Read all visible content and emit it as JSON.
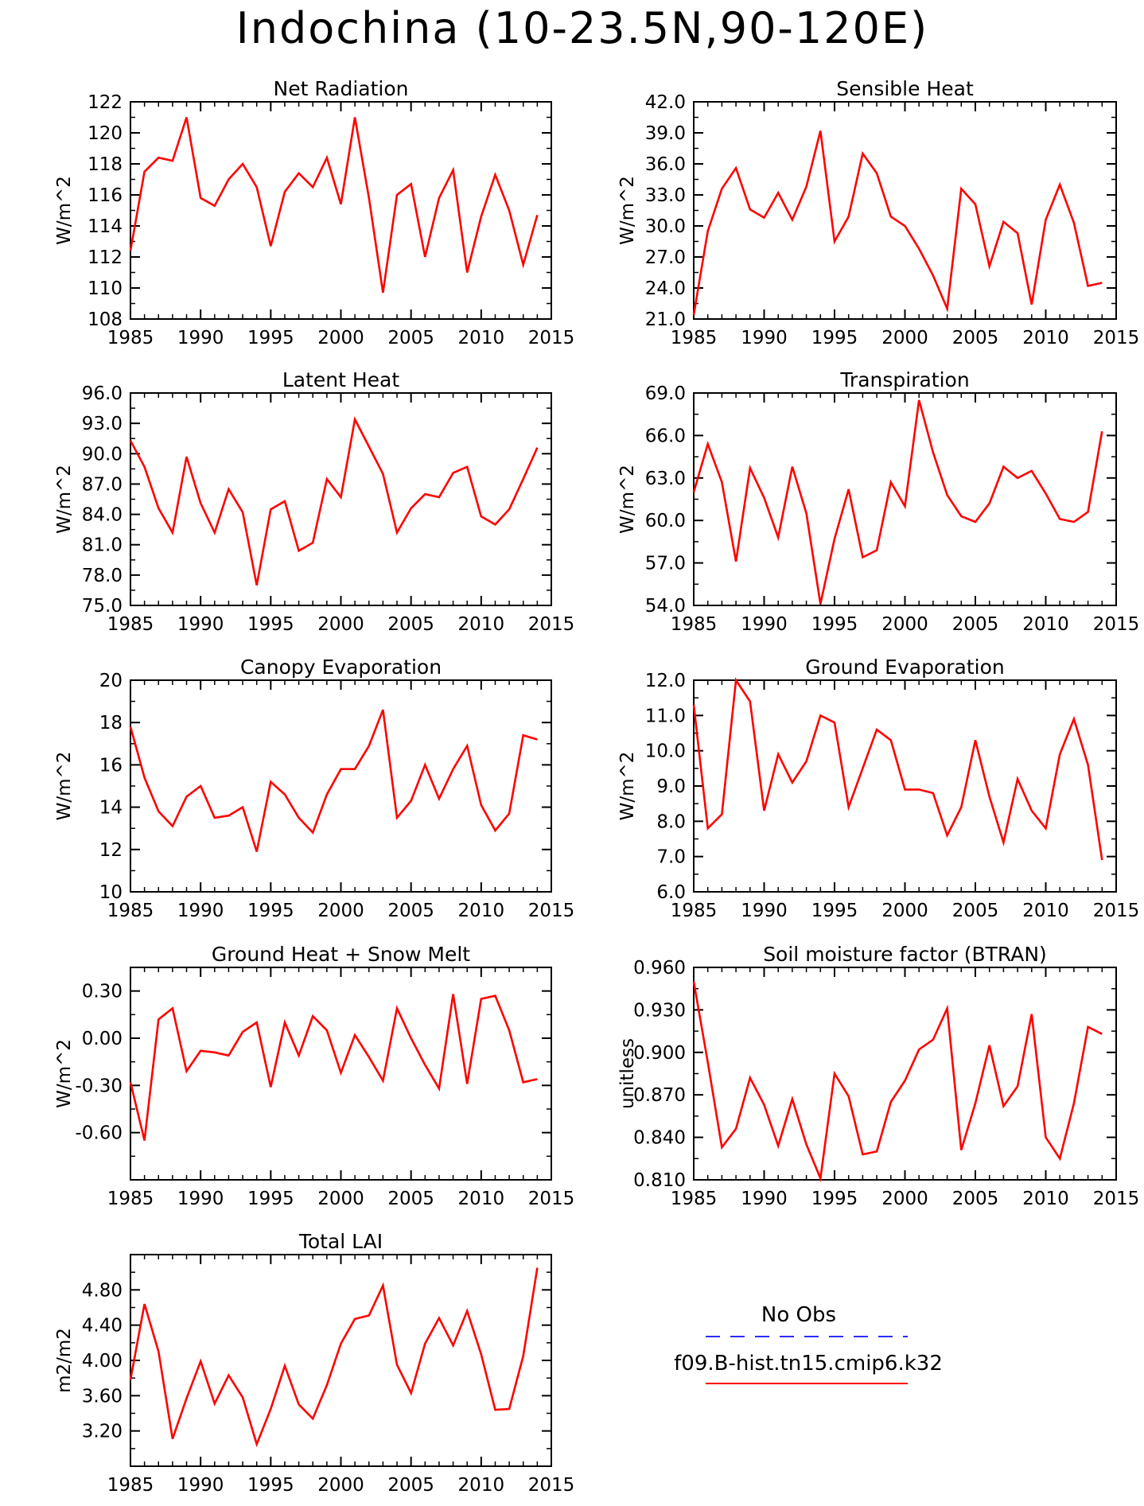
{
  "title": "Indochina (10-23.5N,90-120E)",
  "chart_data": [
    {
      "type": "line",
      "title": "Net Radiation",
      "ylabel": "W/m^2",
      "xlim": [
        1985,
        2015
      ],
      "xticks": [
        1985,
        1990,
        1995,
        2000,
        2005,
        2010,
        2015
      ],
      "ylim": [
        108,
        122
      ],
      "yticks": [
        "108",
        "110",
        "112",
        "114",
        "116",
        "118",
        "120",
        "122"
      ],
      "series": [
        {
          "color": "#ff0000",
          "x": [
            1985,
            1986,
            1987,
            1988,
            1989,
            1990,
            1991,
            1992,
            1993,
            1994,
            1995,
            1996,
            1997,
            1998,
            1999,
            2000,
            2001,
            2002,
            2003,
            2004,
            2005,
            2006,
            2007,
            2008,
            2009,
            2010,
            2011,
            2012,
            2013,
            2014
          ],
          "y": [
            112.4,
            117.5,
            118.4,
            118.2,
            121.0,
            115.8,
            115.3,
            117.0,
            118.0,
            116.5,
            112.7,
            116.2,
            117.4,
            116.5,
            118.4,
            115.4,
            121.0,
            115.8,
            109.7,
            116.0,
            116.7,
            112.0,
            115.8,
            117.6,
            111.0,
            114.6,
            117.3,
            115.0,
            111.5,
            114.7
          ]
        }
      ]
    },
    {
      "type": "line",
      "title": "Sensible Heat",
      "ylabel": "W/m^2",
      "xlim": [
        1985,
        2015
      ],
      "xticks": [
        1985,
        1990,
        1995,
        2000,
        2005,
        2010,
        2015
      ],
      "ylim": [
        21,
        42
      ],
      "yticks": [
        "21.0",
        "24.0",
        "27.0",
        "30.0",
        "33.0",
        "36.0",
        "39.0",
        "42.0"
      ],
      "series": [
        {
          "color": "#ff0000",
          "x": [
            1985,
            1986,
            1987,
            1988,
            1989,
            1990,
            1991,
            1992,
            1993,
            1994,
            1995,
            1996,
            1997,
            1998,
            1999,
            2000,
            2001,
            2002,
            2003,
            2004,
            2005,
            2006,
            2007,
            2008,
            2009,
            2010,
            2011,
            2012,
            2013,
            2014
          ],
          "y": [
            21.4,
            29.5,
            33.6,
            35.6,
            31.6,
            30.8,
            33.2,
            30.6,
            33.8,
            39.2,
            28.5,
            30.9,
            37.0,
            35.1,
            30.9,
            30.0,
            27.8,
            25.2,
            22.0,
            33.6,
            32.1,
            26.1,
            30.4,
            29.3,
            22.4,
            30.6,
            34.0,
            30.3,
            24.2,
            24.5
          ]
        }
      ]
    },
    {
      "type": "line",
      "title": "Latent Heat",
      "ylabel": "W/m^2",
      "xlim": [
        1985,
        2015
      ],
      "xticks": [
        1985,
        1990,
        1995,
        2000,
        2005,
        2010,
        2015
      ],
      "ylim": [
        75,
        96
      ],
      "yticks": [
        "75.0",
        "78.0",
        "81.0",
        "84.0",
        "87.0",
        "90.0",
        "93.0",
        "96.0"
      ],
      "series": [
        {
          "color": "#ff0000",
          "x": [
            1985,
            1986,
            1987,
            1988,
            1989,
            1990,
            1991,
            1992,
            1993,
            1994,
            1995,
            1996,
            1997,
            1998,
            1999,
            2000,
            2001,
            2002,
            2003,
            2004,
            2005,
            2006,
            2007,
            2008,
            2009,
            2010,
            2011,
            2012,
            2013,
            2014
          ],
          "y": [
            91.3,
            88.7,
            84.6,
            82.2,
            89.7,
            85.1,
            82.2,
            86.5,
            84.2,
            77.0,
            84.5,
            85.3,
            80.4,
            81.2,
            87.5,
            85.7,
            93.4,
            90.7,
            88.0,
            82.2,
            84.6,
            86.0,
            85.7,
            88.1,
            88.7,
            83.8,
            83.0,
            84.5,
            87.5,
            90.6
          ]
        }
      ]
    },
    {
      "type": "line",
      "title": "Transpiration",
      "ylabel": "W/m^2",
      "xlim": [
        1985,
        2015
      ],
      "xticks": [
        1985,
        1990,
        1995,
        2000,
        2005,
        2010,
        2015
      ],
      "ylim": [
        54,
        69
      ],
      "yticks": [
        "54.0",
        "57.0",
        "60.0",
        "63.0",
        "66.0",
        "69.0"
      ],
      "series": [
        {
          "color": "#ff0000",
          "x": [
            1985,
            1986,
            1987,
            1988,
            1989,
            1990,
            1991,
            1992,
            1993,
            1994,
            1995,
            1996,
            1997,
            1998,
            1999,
            2000,
            2001,
            2002,
            2003,
            2004,
            2005,
            2006,
            2007,
            2008,
            2009,
            2010,
            2011,
            2012,
            2013,
            2014
          ],
          "y": [
            62.0,
            65.4,
            62.7,
            57.1,
            63.7,
            61.6,
            58.8,
            63.8,
            60.5,
            54.1,
            58.7,
            62.2,
            57.4,
            57.9,
            62.7,
            61.0,
            68.5,
            64.8,
            61.8,
            60.3,
            59.9,
            61.2,
            63.8,
            63.0,
            63.5,
            61.9,
            60.1,
            59.9,
            60.6,
            66.3
          ]
        }
      ]
    },
    {
      "type": "line",
      "title": "Canopy Evaporation",
      "ylabel": "W/m^2",
      "xlim": [
        1985,
        2015
      ],
      "xticks": [
        1985,
        1990,
        1995,
        2000,
        2005,
        2010,
        2015
      ],
      "ylim": [
        10,
        20
      ],
      "yticks": [
        "10",
        "12",
        "14",
        "16",
        "18",
        "20"
      ],
      "series": [
        {
          "color": "#ff0000",
          "x": [
            1985,
            1986,
            1987,
            1988,
            1989,
            1990,
            1991,
            1992,
            1993,
            1994,
            1995,
            1996,
            1997,
            1998,
            1999,
            2000,
            2001,
            2002,
            2003,
            2004,
            2005,
            2006,
            2007,
            2008,
            2009,
            2010,
            2011,
            2012,
            2013,
            2014
          ],
          "y": [
            17.8,
            15.4,
            13.8,
            13.1,
            14.5,
            15.0,
            13.5,
            13.6,
            14.0,
            11.9,
            15.2,
            14.6,
            13.5,
            12.8,
            14.6,
            15.8,
            15.8,
            16.9,
            18.6,
            13.5,
            14.3,
            16.0,
            14.4,
            15.8,
            16.9,
            14.1,
            12.9,
            13.7,
            17.4,
            17.2
          ]
        }
      ]
    },
    {
      "type": "line",
      "title": "Ground Evaporation",
      "ylabel": "W/m^2",
      "xlim": [
        1985,
        2015
      ],
      "xticks": [
        1985,
        1990,
        1995,
        2000,
        2005,
        2010,
        2015
      ],
      "ylim": [
        6,
        12
      ],
      "yticks": [
        "6.0",
        "7.0",
        "8.0",
        "9.0",
        "10.0",
        "11.0",
        "12.0"
      ],
      "series": [
        {
          "color": "#ff0000",
          "x": [
            1985,
            1986,
            1987,
            1988,
            1989,
            1990,
            1991,
            1992,
            1993,
            1994,
            1995,
            1996,
            1997,
            1998,
            1999,
            2000,
            2001,
            2002,
            2003,
            2004,
            2005,
            2006,
            2007,
            2008,
            2009,
            2010,
            2011,
            2012,
            2013,
            2014
          ],
          "y": [
            11.3,
            7.8,
            8.2,
            12.0,
            11.4,
            8.3,
            9.9,
            9.1,
            9.7,
            11.0,
            10.8,
            8.4,
            9.5,
            10.6,
            10.3,
            8.9,
            8.9,
            8.8,
            7.6,
            8.4,
            10.3,
            8.7,
            7.4,
            9.2,
            8.3,
            7.8,
            9.9,
            10.9,
            9.6,
            6.9
          ]
        }
      ]
    },
    {
      "type": "line",
      "title": "Ground Heat + Snow Melt",
      "ylabel": "W/m^2",
      "xlim": [
        1985,
        2015
      ],
      "xticks": [
        1985,
        1990,
        1995,
        2000,
        2005,
        2010,
        2015
      ],
      "ylim": [
        -0.9,
        0.45
      ],
      "yticks": [
        "-0.60",
        "-0.30",
        "0.00",
        "0.30"
      ],
      "series": [
        {
          "color": "#ff0000",
          "x": [
            1985,
            1986,
            1987,
            1988,
            1989,
            1990,
            1991,
            1992,
            1993,
            1994,
            1995,
            1996,
            1997,
            1998,
            1999,
            2000,
            2001,
            2002,
            2003,
            2004,
            2005,
            2006,
            2007,
            2008,
            2009,
            2010,
            2011,
            2012,
            2013,
            2014
          ],
          "y": [
            -0.28,
            -0.65,
            0.12,
            0.19,
            -0.21,
            -0.08,
            -0.09,
            -0.11,
            0.04,
            0.1,
            -0.31,
            0.1,
            -0.11,
            0.14,
            0.05,
            -0.22,
            0.02,
            -0.12,
            -0.27,
            0.19,
            0.0,
            -0.17,
            -0.32,
            0.28,
            -0.29,
            0.25,
            0.27,
            0.05,
            -0.28,
            -0.26
          ]
        }
      ]
    },
    {
      "type": "line",
      "title": "Soil moisture factor (BTRAN)",
      "ylabel": "unitless",
      "xlim": [
        1985,
        2015
      ],
      "xticks": [
        1985,
        1990,
        1995,
        2000,
        2005,
        2010,
        2015
      ],
      "ylim": [
        0.81,
        0.96
      ],
      "yticks": [
        "0.810",
        "0.840",
        "0.870",
        "0.900",
        "0.930",
        "0.960"
      ],
      "series": [
        {
          "color": "#ff0000",
          "x": [
            1985,
            1986,
            1987,
            1988,
            1989,
            1990,
            1991,
            1992,
            1993,
            1994,
            1995,
            1996,
            1997,
            1998,
            1999,
            2000,
            2001,
            2002,
            2003,
            2004,
            2005,
            2006,
            2007,
            2008,
            2009,
            2010,
            2011,
            2012,
            2013,
            2014
          ],
          "y": [
            0.95,
            0.893,
            0.833,
            0.846,
            0.882,
            0.863,
            0.834,
            0.867,
            0.835,
            0.811,
            0.885,
            0.869,
            0.828,
            0.83,
            0.865,
            0.88,
            0.902,
            0.909,
            0.931,
            0.831,
            0.864,
            0.905,
            0.862,
            0.876,
            0.927,
            0.84,
            0.825,
            0.864,
            0.918,
            0.913
          ]
        }
      ]
    },
    {
      "type": "line",
      "title": "Total LAI",
      "ylabel": "m2/m2",
      "xlim": [
        1985,
        2015
      ],
      "xticks": [
        1985,
        1990,
        1995,
        2000,
        2005,
        2010,
        2015
      ],
      "ylim": [
        2.8,
        5.2
      ],
      "yticks": [
        "3.20",
        "3.60",
        "4.00",
        "4.40",
        "4.80"
      ],
      "series": [
        {
          "color": "#ff0000",
          "x": [
            1985,
            1986,
            1987,
            1988,
            1989,
            1990,
            1991,
            1992,
            1993,
            1994,
            1995,
            1996,
            1997,
            1998,
            1999,
            2000,
            2001,
            2002,
            2003,
            2004,
            2005,
            2006,
            2007,
            2008,
            2009,
            2010,
            2011,
            2012,
            2013,
            2014
          ],
          "y": [
            3.78,
            4.64,
            4.1,
            3.11,
            3.57,
            3.99,
            3.51,
            3.83,
            3.58,
            3.05,
            3.45,
            3.94,
            3.5,
            3.34,
            3.72,
            4.19,
            4.47,
            4.51,
            4.85,
            3.95,
            3.63,
            4.19,
            4.48,
            4.17,
            4.56,
            4.07,
            3.44,
            3.45,
            4.05,
            5.05
          ]
        }
      ]
    }
  ],
  "legend": {
    "obs_label": "No Obs",
    "obs_color": "#2b2bff",
    "model_label": "f09.B-hist.tn15.cmip6.k32",
    "model_color": "#ff0000"
  }
}
